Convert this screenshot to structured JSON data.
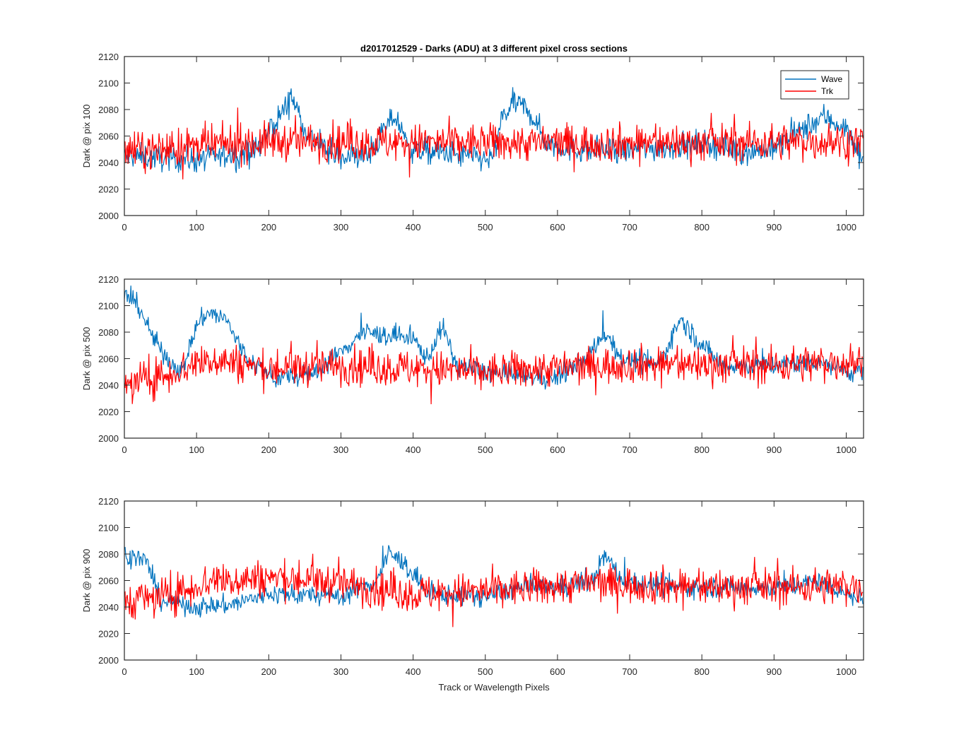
{
  "figure": {
    "title": "d2017012529 - Darks (ADU) at 3 different pixel cross sections",
    "xlabel": "Track or Wavelength Pixels"
  },
  "legend": {
    "entries": [
      "Wave",
      "Trk"
    ],
    "placement": "top-right of first panel"
  },
  "colors": {
    "Wave": "#0072BD",
    "Trk": "#FF0000"
  },
  "chart_data": [
    {
      "type": "line",
      "ylabel": "Dark @ pix 100",
      "xlim": [
        0,
        1024
      ],
      "ylim": [
        2000,
        2120
      ],
      "xticks": [
        0,
        100,
        200,
        300,
        400,
        500,
        600,
        700,
        800,
        900,
        1000
      ],
      "yticks": [
        2000,
        2020,
        2040,
        2060,
        2080,
        2100,
        2120
      ],
      "grid": false,
      "series": [
        {
          "name": "Wave",
          "color": "#0072BD",
          "n": 1024,
          "noise": 9,
          "profile": [
            [
              0,
              2045
            ],
            [
              100,
              2042
            ],
            [
              180,
              2048
            ],
            [
              215,
              2075
            ],
            [
              232,
              2090
            ],
            [
              255,
              2060
            ],
            [
              290,
              2045
            ],
            [
              340,
              2045
            ],
            [
              360,
              2065
            ],
            [
              375,
              2075
            ],
            [
              395,
              2050
            ],
            [
              470,
              2045
            ],
            [
              510,
              2042
            ],
            [
              525,
              2075
            ],
            [
              540,
              2085
            ],
            [
              560,
              2080
            ],
            [
              585,
              2055
            ],
            [
              620,
              2050
            ],
            [
              680,
              2048
            ],
            [
              760,
              2052
            ],
            [
              800,
              2055
            ],
            [
              860,
              2048
            ],
            [
              900,
              2050
            ],
            [
              940,
              2065
            ],
            [
              970,
              2075
            ],
            [
              1000,
              2065
            ],
            [
              1024,
              2042
            ]
          ]
        },
        {
          "name": "Trk",
          "color": "#FF0000",
          "n": 1024,
          "noise": 13,
          "profile": [
            [
              0,
              2048
            ],
            [
              200,
              2056
            ],
            [
              400,
              2055
            ],
            [
              600,
              2055
            ],
            [
              800,
              2055
            ],
            [
              1024,
              2056
            ]
          ]
        }
      ]
    },
    {
      "type": "line",
      "ylabel": "Dark @ pix 500",
      "xlim": [
        0,
        1024
      ],
      "ylim": [
        2000,
        2120
      ],
      "xticks": [
        0,
        100,
        200,
        300,
        400,
        500,
        600,
        700,
        800,
        900,
        1000
      ],
      "yticks": [
        2000,
        2020,
        2040,
        2060,
        2080,
        2100,
        2120
      ],
      "grid": false,
      "series": [
        {
          "name": "Wave",
          "color": "#0072BD",
          "n": 1024,
          "noise": 7,
          "profile": [
            [
              0,
              2108
            ],
            [
              20,
              2100
            ],
            [
              40,
              2075
            ],
            [
              60,
              2060
            ],
            [
              80,
              2050
            ],
            [
              100,
              2085
            ],
            [
              115,
              2095
            ],
            [
              140,
              2090
            ],
            [
              170,
              2060
            ],
            [
              210,
              2045
            ],
            [
              260,
              2048
            ],
            [
              300,
              2065
            ],
            [
              330,
              2080
            ],
            [
              400,
              2075
            ],
            [
              420,
              2060
            ],
            [
              440,
              2085
            ],
            [
              460,
              2055
            ],
            [
              520,
              2048
            ],
            [
              600,
              2045
            ],
            [
              640,
              2060
            ],
            [
              665,
              2080
            ],
            [
              690,
              2060
            ],
            [
              740,
              2055
            ],
            [
              770,
              2090
            ],
            [
              800,
              2070
            ],
            [
              830,
              2055
            ],
            [
              900,
              2055
            ],
            [
              960,
              2058
            ],
            [
              1024,
              2048
            ]
          ]
        },
        {
          "name": "Trk",
          "color": "#FF0000",
          "n": 1024,
          "noise": 13,
          "profile": [
            [
              0,
              2040
            ],
            [
              60,
              2048
            ],
            [
              120,
              2060
            ],
            [
              200,
              2052
            ],
            [
              300,
              2055
            ],
            [
              500,
              2050
            ],
            [
              700,
              2056
            ],
            [
              900,
              2055
            ],
            [
              1024,
              2058
            ]
          ]
        }
      ]
    },
    {
      "type": "line",
      "ylabel": "Dark @ pix 900",
      "xlim": [
        0,
        1024
      ],
      "ylim": [
        2000,
        2120
      ],
      "xticks": [
        0,
        100,
        200,
        300,
        400,
        500,
        600,
        700,
        800,
        900,
        1000
      ],
      "yticks": [
        2000,
        2020,
        2040,
        2060,
        2080,
        2100,
        2120
      ],
      "grid": false,
      "series": [
        {
          "name": "Wave",
          "color": "#0072BD",
          "n": 1024,
          "noise": 7,
          "profile": [
            [
              0,
              2080
            ],
            [
              30,
              2075
            ],
            [
              50,
              2045
            ],
            [
              100,
              2040
            ],
            [
              150,
              2042
            ],
            [
              200,
              2050
            ],
            [
              300,
              2048
            ],
            [
              350,
              2060
            ],
            [
              365,
              2080
            ],
            [
              385,
              2075
            ],
            [
              420,
              2050
            ],
            [
              500,
              2048
            ],
            [
              550,
              2055
            ],
            [
              600,
              2055
            ],
            [
              650,
              2060
            ],
            [
              665,
              2080
            ],
            [
              690,
              2060
            ],
            [
              760,
              2055
            ],
            [
              850,
              2055
            ],
            [
              920,
              2055
            ],
            [
              960,
              2060
            ],
            [
              1024,
              2045
            ]
          ]
        },
        {
          "name": "Trk",
          "color": "#FF0000",
          "n": 1024,
          "noise": 13,
          "profile": [
            [
              0,
              2045
            ],
            [
              60,
              2048
            ],
            [
              120,
              2060
            ],
            [
              210,
              2062
            ],
            [
              300,
              2058
            ],
            [
              400,
              2050
            ],
            [
              500,
              2052
            ],
            [
              650,
              2058
            ],
            [
              800,
              2055
            ],
            [
              1024,
              2056
            ]
          ]
        }
      ]
    }
  ]
}
